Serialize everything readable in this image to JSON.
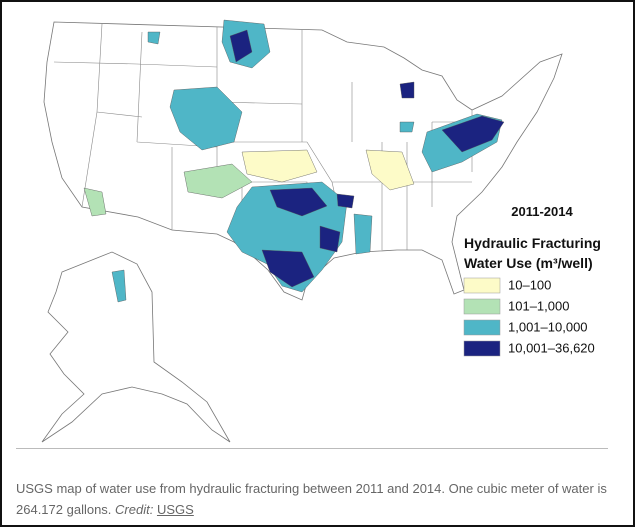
{
  "legend": {
    "title": "2011-2014",
    "subtitle": [
      "Hydraulic Fracturing",
      "Water Use (m³/well)"
    ],
    "items": [
      {
        "label": "10–100",
        "color": "#fdfbc8"
      },
      {
        "label": "101–1,000",
        "color": "#b3e2b5"
      },
      {
        "label": "1,001–10,000",
        "color": "#4fb6c7"
      },
      {
        "label": "10,001–36,620",
        "color": "#1b2380"
      }
    ]
  },
  "caption": {
    "text": "USGS map of water use from hydraulic fracturing between 2011 and 2014. One cubic meter of water is 264.172 gallons.",
    "credit_label": "Credit:",
    "credit_link": "USGS"
  }
}
